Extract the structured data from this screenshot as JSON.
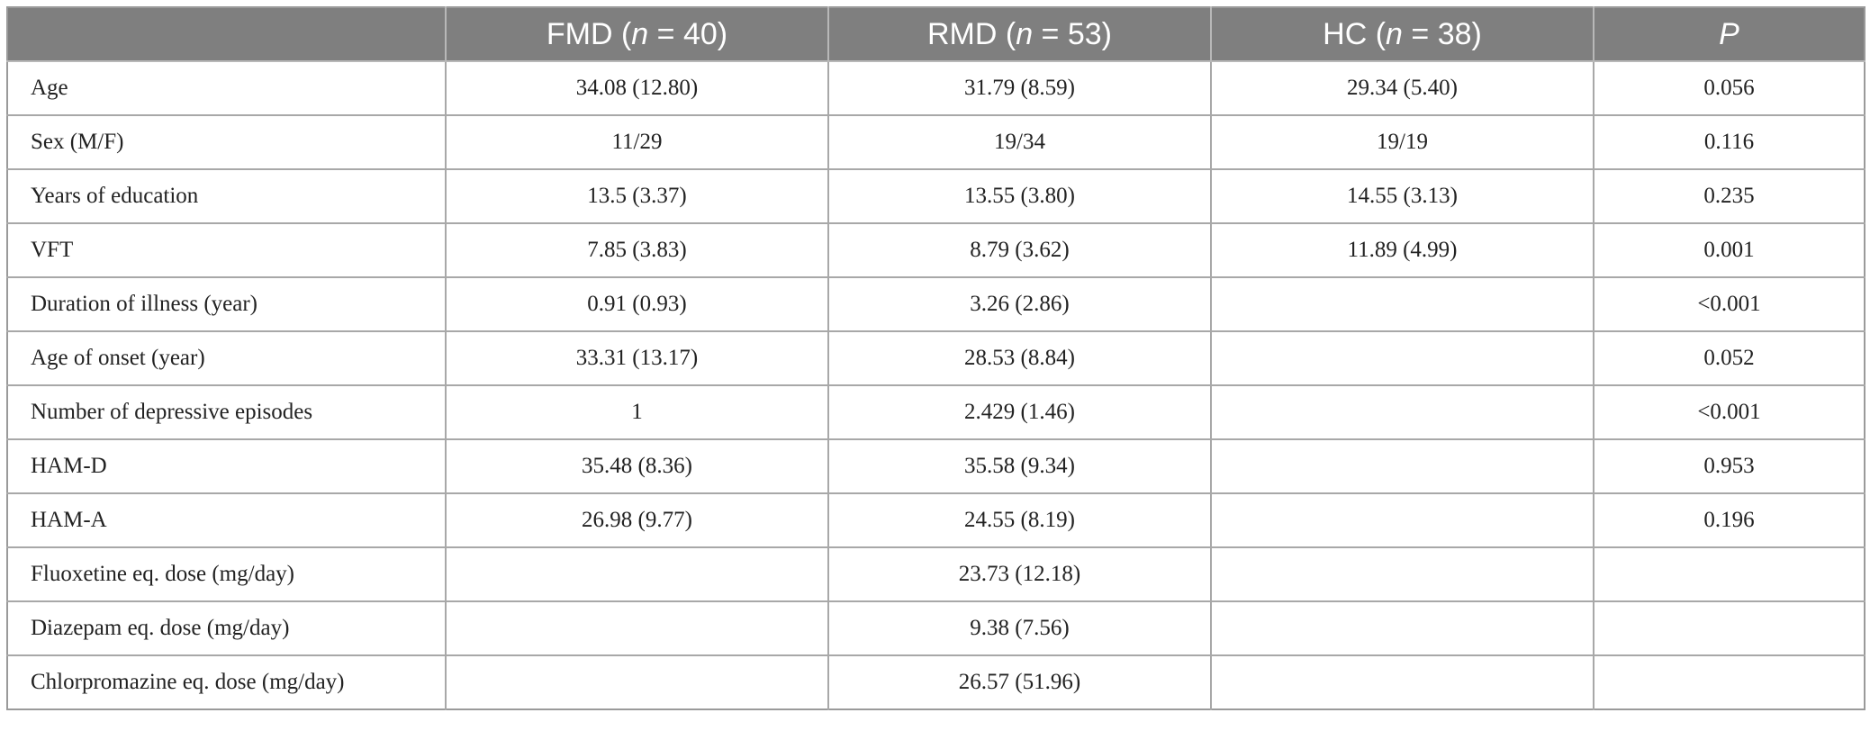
{
  "table": {
    "headers": [
      {
        "pre": "",
        "italic": "",
        "post": ""
      },
      {
        "pre": "FMD (",
        "italic": "n",
        "post": " = 40)"
      },
      {
        "pre": "RMD (",
        "italic": "n",
        "post": " = 53)"
      },
      {
        "pre": "HC (",
        "italic": "n",
        "post": " = 38)"
      },
      {
        "pre": "",
        "italic": "P",
        "post": ""
      }
    ],
    "rows": [
      [
        "Age",
        "34.08 (12.80)",
        "31.79 (8.59)",
        "29.34 (5.40)",
        "0.056"
      ],
      [
        "Sex (M/F)",
        "11/29",
        "19/34",
        "19/19",
        "0.116"
      ],
      [
        "Years of education",
        "13.5 (3.37)",
        "13.55 (3.80)",
        "14.55 (3.13)",
        "0.235"
      ],
      [
        "VFT",
        "7.85 (3.83)",
        "8.79 (3.62)",
        "11.89 (4.99)",
        "0.001"
      ],
      [
        "Duration of illness (year)",
        "0.91 (0.93)",
        "3.26 (2.86)",
        "",
        "<0.001"
      ],
      [
        "Age of onset (year)",
        "33.31 (13.17)",
        "28.53 (8.84)",
        "",
        "0.052"
      ],
      [
        "Number of depressive episodes",
        "1",
        "2.429 (1.46)",
        "",
        "<0.001"
      ],
      [
        "HAM-D",
        "35.48 (8.36)",
        "35.58 (9.34)",
        "",
        "0.953"
      ],
      [
        "HAM-A",
        "26.98 (9.77)",
        "24.55 (8.19)",
        "",
        "0.196"
      ],
      [
        "Fluoxetine eq. dose (mg/day)",
        "",
        "23.73 (12.18)",
        "",
        ""
      ],
      [
        "Diazepam eq. dose (mg/day)",
        "",
        "9.38 (7.56)",
        "",
        ""
      ],
      [
        "Chlorpromazine eq. dose (mg/day)",
        "",
        "26.57 (51.96)",
        "",
        ""
      ]
    ]
  }
}
